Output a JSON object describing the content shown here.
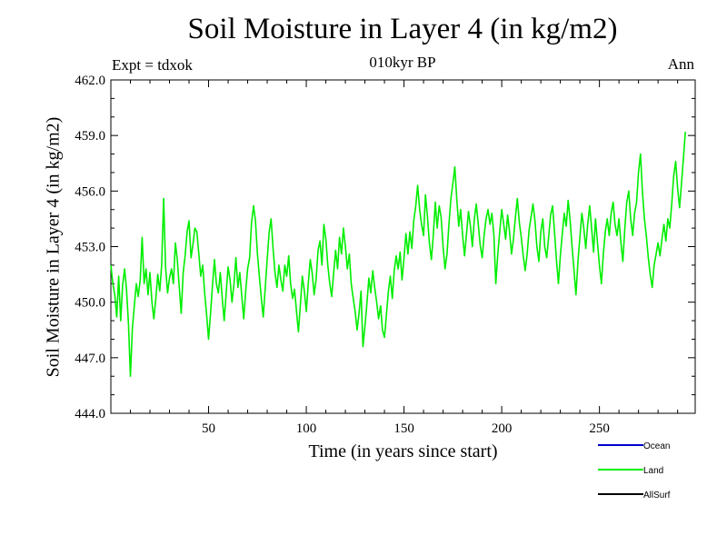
{
  "chart_data": {
    "type": "line",
    "title": "Soil Moisture in Layer 4 (in kg/m2)",
    "subtitle": "010kyr BP",
    "experiment_label": "Expt = tdxok",
    "season_label": "Ann",
    "xlabel": "Time (in years since start)",
    "ylabel": "Soil Moisture in Layer 4 (in kg/m2)",
    "xlim": [
      0,
      299
    ],
    "ylim": [
      444.0,
      462.0
    ],
    "x_ticks": [
      50,
      100,
      150,
      200,
      250
    ],
    "x_tick_labels": [
      "50",
      "100",
      "150",
      "200",
      "250"
    ],
    "y_ticks": [
      444.0,
      447.0,
      450.0,
      453.0,
      456.0,
      459.0,
      462.0
    ],
    "y_tick_labels": [
      "444.0",
      "447.0",
      "450.0",
      "453.0",
      "456.0",
      "459.0",
      "462.0"
    ],
    "grid": false,
    "legend_placement": "below-right",
    "legend": [
      {
        "name": "Ocean",
        "color": "#0000cc"
      },
      {
        "name": "Land",
        "color": "#00ee00"
      },
      {
        "name": "AllSurf",
        "color": "#000000"
      }
    ],
    "series": [
      {
        "name": "Land",
        "color": "#00ee00",
        "x_start": 0,
        "x_step": 1,
        "values": [
          452.0,
          451.0,
          450.4,
          449.2,
          451.4,
          449.0,
          450.9,
          451.8,
          450.7,
          448.8,
          446.0,
          448.6,
          449.8,
          451.0,
          450.3,
          451.2,
          453.5,
          451.0,
          451.8,
          450.4,
          451.6,
          450.0,
          449.1,
          450.2,
          451.5,
          450.6,
          452.0,
          455.6,
          451.9,
          450.5,
          451.3,
          451.8,
          451.0,
          453.2,
          452.3,
          450.8,
          449.4,
          451.6,
          452.5,
          453.8,
          454.4,
          452.4,
          453.1,
          454.0,
          453.8,
          452.6,
          451.4,
          452.0,
          450.5,
          449.3,
          448.0,
          449.4,
          450.9,
          452.3,
          451.0,
          450.5,
          451.6,
          450.2,
          449.0,
          450.5,
          451.9,
          451.2,
          450.0,
          451.0,
          452.4,
          450.8,
          451.6,
          450.3,
          449.1,
          450.6,
          451.8,
          452.4,
          454.3,
          455.2,
          454.4,
          452.6,
          451.4,
          450.2,
          449.2,
          450.8,
          452.3,
          453.8,
          454.5,
          452.9,
          451.6,
          450.8,
          452.0,
          451.2,
          450.6,
          452.0,
          451.4,
          452.5,
          451.0,
          450.2,
          450.7,
          449.5,
          448.4,
          449.9,
          451.4,
          450.6,
          449.5,
          451.0,
          452.3,
          451.6,
          450.4,
          451.2,
          452.8,
          453.3,
          452.0,
          454.2,
          453.4,
          452.0,
          451.0,
          450.3,
          451.6,
          452.8,
          451.8,
          453.5,
          452.6,
          454.0,
          453.0,
          451.8,
          452.6,
          451.0,
          450.2,
          449.5,
          448.5,
          449.4,
          450.6,
          447.6,
          448.7,
          449.9,
          451.3,
          450.5,
          451.7,
          450.8,
          450.0,
          449.1,
          449.8,
          448.5,
          448.1,
          449.3,
          450.6,
          451.4,
          450.2,
          451.7,
          452.5,
          451.8,
          452.7,
          451.2,
          452.4,
          453.7,
          452.6,
          453.8,
          452.9,
          454.4,
          455.2,
          456.3,
          455.0,
          454.2,
          453.6,
          455.8,
          454.6,
          453.2,
          452.3,
          453.6,
          455.4,
          454.0,
          455.2,
          454.6,
          453.0,
          451.8,
          452.6,
          454.2,
          455.6,
          456.4,
          457.3,
          455.6,
          454.1,
          455.0,
          453.6,
          452.5,
          453.7,
          454.9,
          454.1,
          453.0,
          454.5,
          455.3,
          454.2,
          453.1,
          452.4,
          453.6,
          454.5,
          455.0,
          454.2,
          454.8,
          453.6,
          451.0,
          452.6,
          453.8,
          455.0,
          454.2,
          453.4,
          454.7,
          453.8,
          452.6,
          453.4,
          454.6,
          455.6,
          454.3,
          453.5,
          452.5,
          451.7,
          452.6,
          453.9,
          454.6,
          455.3,
          454.4,
          453.0,
          452.2,
          453.8,
          454.5,
          453.0,
          452.4,
          453.5,
          454.7,
          455.2,
          453.8,
          452.3,
          451.0,
          452.5,
          453.7,
          454.8,
          454.1,
          455.5,
          454.4,
          453.0,
          451.7,
          450.4,
          452.2,
          453.5,
          454.8,
          454.0,
          452.9,
          454.2,
          455.2,
          454.0,
          452.7,
          454.5,
          453.2,
          452.0,
          451.0,
          452.6,
          453.8,
          454.5,
          453.6,
          454.8,
          455.4,
          454.2,
          453.6,
          454.5,
          453.2,
          452.2,
          454.0,
          455.4,
          456.0,
          454.5,
          453.6,
          454.8,
          455.4,
          457.0,
          458.0,
          456.0,
          454.5,
          453.6,
          452.4,
          451.5,
          450.8,
          452.0,
          452.6,
          453.2,
          452.5,
          453.4,
          454.2,
          453.3,
          454.5,
          454.0,
          455.3,
          456.8,
          457.6,
          456.2,
          455.1,
          456.4,
          457.8,
          459.2
        ]
      }
    ]
  }
}
